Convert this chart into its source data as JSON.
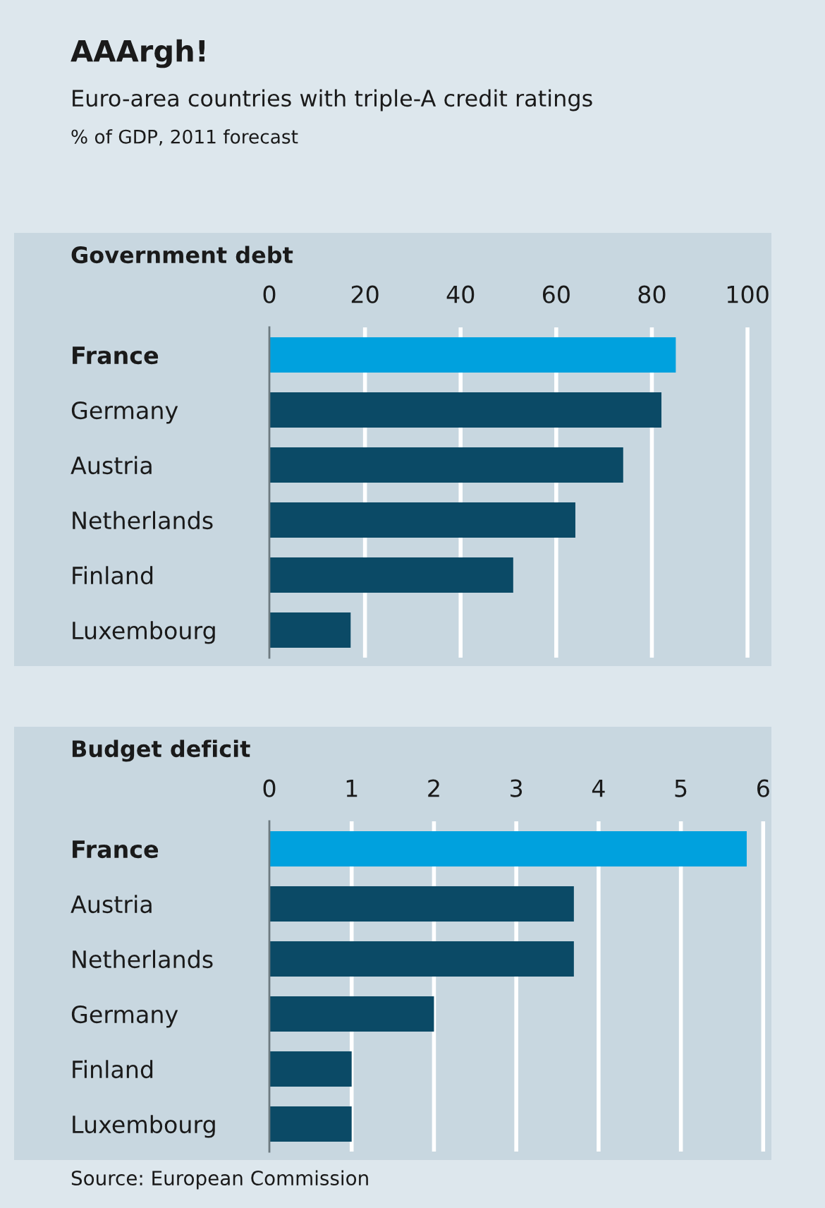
{
  "chart_data": [
    {
      "type": "other",
      "title": "AAArgh!",
      "subtitle": "Euro-area countries with triple-A credit ratings",
      "annotations": [
        "% of GDP, 2011 forecast"
      ]
    },
    {
      "type": "bar",
      "orientation": "horizontal",
      "title": "Government debt",
      "categories": [
        "France",
        "Germany",
        "Austria",
        "Netherlands",
        "Finland",
        "Luxembourg"
      ],
      "values": [
        85,
        82,
        74,
        64,
        51,
        17
      ],
      "colors": [
        "#00a1de",
        "#0b4a66",
        "#0b4a66",
        "#0b4a66",
        "#0b4a66",
        "#0b4a66"
      ],
      "xlim": [
        0,
        105
      ],
      "xticks": [
        0,
        20,
        40,
        60,
        80,
        100
      ],
      "grid": "x"
    },
    {
      "type": "bar",
      "orientation": "horizontal",
      "title": "Budget deficit",
      "categories": [
        "France",
        "Austria",
        "Netherlands",
        "Germany",
        "Finland",
        "Luxembourg"
      ],
      "values": [
        5.8,
        3.7,
        3.7,
        2.0,
        1.0,
        1.0
      ],
      "colors": [
        "#00a1de",
        "#0b4a66",
        "#0b4a66",
        "#0b4a66",
        "#0b4a66",
        "#0b4a66"
      ],
      "xlim": [
        0,
        6.1
      ],
      "xticks": [
        0,
        1,
        2,
        3,
        4,
        5,
        6
      ],
      "grid": "x",
      "annotations": [
        "Source: European Commission"
      ]
    }
  ]
}
